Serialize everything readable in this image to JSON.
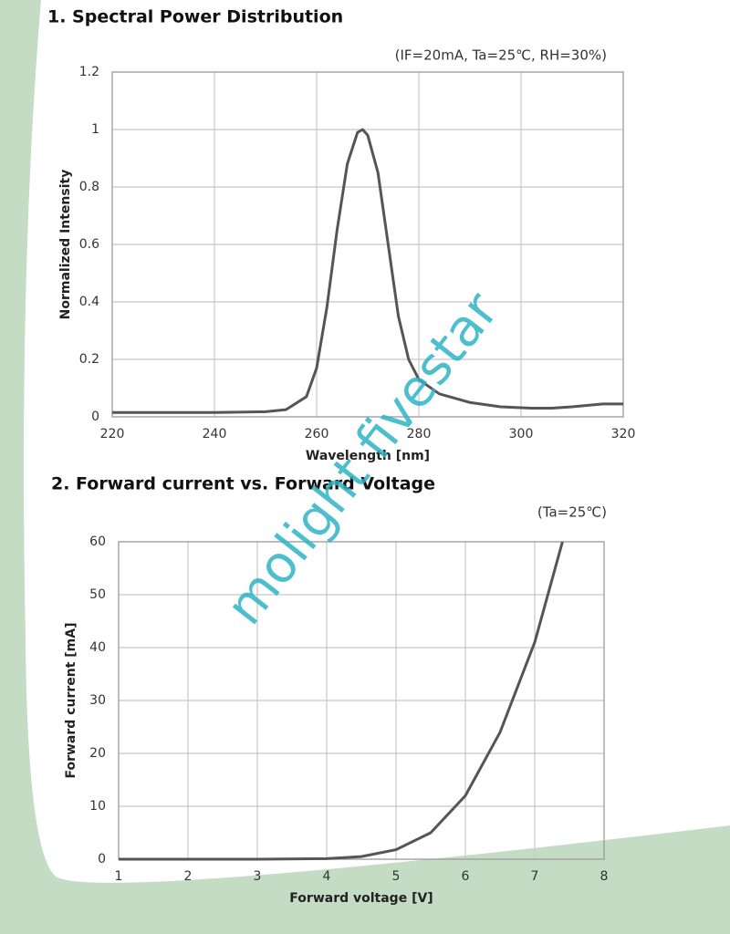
{
  "chart_data": [
    {
      "type": "line",
      "title": "1. Spectral Power Distribution",
      "subtitle": "(IF=20mA, Ta=25℃, RH=30%)",
      "x_label": "Wavelength [nm]",
      "y_label": "Normalized Intensity",
      "x": [
        220,
        230,
        240,
        250,
        254,
        258,
        260,
        262,
        264,
        266,
        268,
        269,
        270,
        272,
        274,
        276,
        278,
        280,
        284,
        290,
        296,
        302,
        306,
        310,
        316,
        320
      ],
      "series": [
        {
          "color": "#555555",
          "values": [
            0.015,
            0.015,
            0.015,
            0.018,
            0.025,
            0.07,
            0.17,
            0.38,
            0.65,
            0.88,
            0.99,
            1.0,
            0.98,
            0.85,
            0.6,
            0.35,
            0.2,
            0.13,
            0.08,
            0.05,
            0.035,
            0.03,
            0.03,
            0.035,
            0.045,
            0.045
          ]
        }
      ],
      "xlim": [
        220,
        320
      ],
      "xticks": [
        220,
        240,
        260,
        280,
        300,
        320
      ],
      "ylim": [
        0,
        1.2
      ],
      "yticks": [
        0,
        0.2,
        0.4,
        0.6,
        0.8,
        1,
        1.2
      ],
      "grid": true
    },
    {
      "type": "line",
      "title": "2. Forward  current vs. Forward Voltage",
      "subtitle": "(Ta=25℃)",
      "x_label": "Forward voltage [V]",
      "y_label": "Forward current [mA]",
      "x": [
        1,
        2,
        3,
        4,
        4.5,
        5,
        5.5,
        6,
        6.5,
        7,
        7.4
      ],
      "series": [
        {
          "color": "#555555",
          "values": [
            0,
            0,
            0,
            0.1,
            0.5,
            1.8,
            5,
            12,
            24,
            41,
            60
          ]
        }
      ],
      "xlim": [
        1,
        8
      ],
      "xticks": [
        1,
        2,
        3,
        4,
        5,
        6,
        7,
        8
      ],
      "ylim": [
        0,
        60
      ],
      "yticks": [
        0,
        10,
        20,
        30,
        40,
        50,
        60
      ],
      "grid": true
    }
  ],
  "watermark": "molight fivestar"
}
